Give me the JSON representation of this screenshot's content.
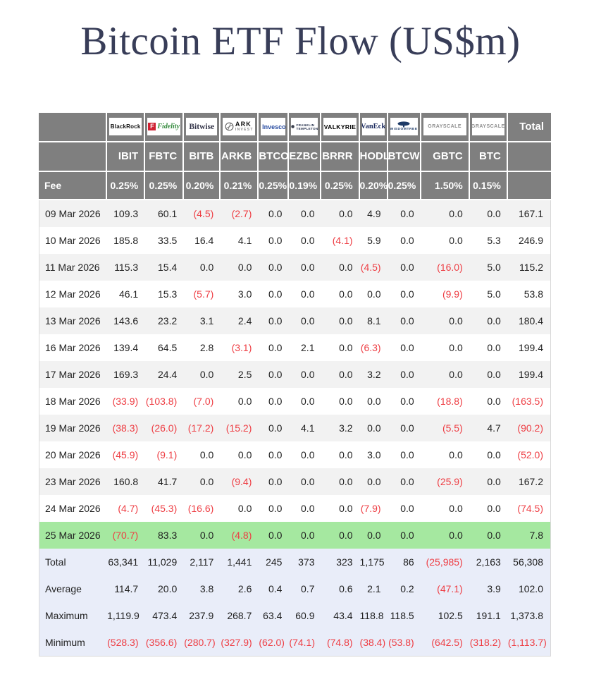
{
  "title": "Bitcoin ETF Flow (US$m)",
  "colors": {
    "title": "#383d58",
    "header_bg": "#7f7f7f",
    "stripe_bg": "#f2f2f2",
    "highlight_bg": "#a5e8a0",
    "summary_bg": "#e9edf9",
    "negative_text": "#ee3d43"
  },
  "table": {
    "fee_label": "Fee",
    "total_label": "Total",
    "columns": [
      {
        "ticker": "IBIT",
        "provider": "BlackRock",
        "fee": "0.25%",
        "logo": {
          "type": "blackrock",
          "lines": [
            "BlackRock"
          ]
        }
      },
      {
        "ticker": "FBTC",
        "provider": "Fidelity",
        "fee": "0.25%",
        "logo": {
          "type": "fidelity",
          "lines": [
            "F",
            "Fidelity"
          ]
        }
      },
      {
        "ticker": "BITB",
        "provider": "Bitwise",
        "fee": "0.20%",
        "logo": {
          "type": "bitwise",
          "lines": [
            "Bitwise"
          ]
        }
      },
      {
        "ticker": "ARKB",
        "provider": "ARK Invest",
        "fee": "0.21%",
        "logo": {
          "type": "ark",
          "lines": [
            "ARK",
            "INVEST"
          ]
        }
      },
      {
        "ticker": "BTCO",
        "provider": "Invesco",
        "fee": "0.25%",
        "logo": {
          "type": "invesco",
          "lines": [
            "Invesco"
          ]
        }
      },
      {
        "ticker": "EZBC",
        "provider": "Franklin Templeton",
        "fee": "0.19%",
        "logo": {
          "type": "franklin",
          "lines": [
            "FRANKLIN",
            "TEMPLETON"
          ]
        }
      },
      {
        "ticker": "BRRR",
        "provider": "Valkyrie",
        "fee": "0.25%",
        "logo": {
          "type": "valkyrie",
          "lines": [
            "VALKYRIE"
          ]
        }
      },
      {
        "ticker": "HODL",
        "provider": "VanEck",
        "fee": "0.20%",
        "logo": {
          "type": "vaneck",
          "lines": [
            "VanEck"
          ]
        }
      },
      {
        "ticker": "BTCW",
        "provider": "WisdomTree",
        "fee": "0.25%",
        "logo": {
          "type": "wisdomtree",
          "lines": [
            "WISDOMTREE"
          ]
        }
      },
      {
        "ticker": "GBTC",
        "provider": "Grayscale",
        "fee": "1.50%",
        "logo": {
          "type": "grayscale",
          "lines": [
            "GRAYSCALE"
          ]
        }
      },
      {
        "ticker": "BTC",
        "provider": "Grayscale",
        "fee": "0.15%",
        "logo": {
          "type": "grayscale",
          "lines": [
            "GRAYSCALE"
          ]
        }
      }
    ],
    "rows": [
      {
        "date": "09 Mar 2026",
        "values": [
          "109.3",
          "60.1",
          "(4.5)",
          "(2.7)",
          "0.0",
          "0.0",
          "0.0",
          "4.9",
          "0.0",
          "0.0",
          "0.0"
        ],
        "total": "167.1",
        "highlight": false
      },
      {
        "date": "10 Mar 2026",
        "values": [
          "185.8",
          "33.5",
          "16.4",
          "4.1",
          "0.0",
          "0.0",
          "(4.1)",
          "5.9",
          "0.0",
          "0.0",
          "5.3"
        ],
        "total": "246.9",
        "highlight": false
      },
      {
        "date": "11 Mar 2026",
        "values": [
          "115.3",
          "15.4",
          "0.0",
          "0.0",
          "0.0",
          "0.0",
          "0.0",
          "(4.5)",
          "0.0",
          "(16.0)",
          "5.0"
        ],
        "total": "115.2",
        "highlight": false
      },
      {
        "date": "12 Mar 2026",
        "values": [
          "46.1",
          "15.3",
          "(5.7)",
          "3.0",
          "0.0",
          "0.0",
          "0.0",
          "0.0",
          "0.0",
          "(9.9)",
          "5.0"
        ],
        "total": "53.8",
        "highlight": false
      },
      {
        "date": "13 Mar 2026",
        "values": [
          "143.6",
          "23.2",
          "3.1",
          "2.4",
          "0.0",
          "0.0",
          "0.0",
          "8.1",
          "0.0",
          "0.0",
          "0.0"
        ],
        "total": "180.4",
        "highlight": false
      },
      {
        "date": "16 Mar 2026",
        "values": [
          "139.4",
          "64.5",
          "2.8",
          "(3.1)",
          "0.0",
          "2.1",
          "0.0",
          "(6.3)",
          "0.0",
          "0.0",
          "0.0"
        ],
        "total": "199.4",
        "highlight": false
      },
      {
        "date": "17 Mar 2026",
        "values": [
          "169.3",
          "24.4",
          "0.0",
          "2.5",
          "0.0",
          "0.0",
          "0.0",
          "3.2",
          "0.0",
          "0.0",
          "0.0"
        ],
        "total": "199.4",
        "highlight": false
      },
      {
        "date": "18 Mar 2026",
        "values": [
          "(33.9)",
          "(103.8)",
          "(7.0)",
          "0.0",
          "0.0",
          "0.0",
          "0.0",
          "0.0",
          "0.0",
          "(18.8)",
          "0.0"
        ],
        "total": "(163.5)",
        "highlight": false
      },
      {
        "date": "19 Mar 2026",
        "values": [
          "(38.3)",
          "(26.0)",
          "(17.2)",
          "(15.2)",
          "0.0",
          "4.1",
          "3.2",
          "0.0",
          "0.0",
          "(5.5)",
          "4.7"
        ],
        "total": "(90.2)",
        "highlight": false
      },
      {
        "date": "20 Mar 2026",
        "values": [
          "(45.9)",
          "(9.1)",
          "0.0",
          "0.0",
          "0.0",
          "0.0",
          "0.0",
          "3.0",
          "0.0",
          "0.0",
          "0.0"
        ],
        "total": "(52.0)",
        "highlight": false
      },
      {
        "date": "23 Mar 2026",
        "values": [
          "160.8",
          "41.7",
          "0.0",
          "(9.4)",
          "0.0",
          "0.0",
          "0.0",
          "0.0",
          "0.0",
          "(25.9)",
          "0.0"
        ],
        "total": "167.2",
        "highlight": false
      },
      {
        "date": "24 Mar 2026",
        "values": [
          "(4.7)",
          "(45.3)",
          "(16.6)",
          "0.0",
          "0.0",
          "0.0",
          "0.0",
          "(7.9)",
          "0.0",
          "0.0",
          "0.0"
        ],
        "total": "(74.5)",
        "highlight": false
      },
      {
        "date": "25 Mar 2026",
        "values": [
          "(70.7)",
          "83.3",
          "0.0",
          "(4.8)",
          "0.0",
          "0.0",
          "0.0",
          "0.0",
          "0.0",
          "0.0",
          "0.0"
        ],
        "total": "7.8",
        "highlight": true
      }
    ],
    "summary": [
      {
        "label": "Total",
        "values": [
          "63,341",
          "11,029",
          "2,117",
          "1,441",
          "245",
          "373",
          "323",
          "1,175",
          "86",
          "(25,985)",
          "2,163"
        ],
        "total": "56,308"
      },
      {
        "label": "Average",
        "values": [
          "114.7",
          "20.0",
          "3.8",
          "2.6",
          "0.4",
          "0.7",
          "0.6",
          "2.1",
          "0.2",
          "(47.1)",
          "3.9"
        ],
        "total": "102.0"
      },
      {
        "label": "Maximum",
        "values": [
          "1,119.9",
          "473.4",
          "237.9",
          "268.7",
          "63.4",
          "60.9",
          "43.4",
          "118.8",
          "118.5",
          "102.5",
          "191.1"
        ],
        "total": "1,373.8"
      },
      {
        "label": "Minimum",
        "values": [
          "(528.3)",
          "(356.6)",
          "(280.7)",
          "(327.9)",
          "(62.0)",
          "(74.1)",
          "(74.8)",
          "(38.4)",
          "(53.8)",
          "(642.5)",
          "(318.2)"
        ],
        "total": "(1,113.7)"
      }
    ]
  },
  "chart_data": {
    "type": "table",
    "title": "Bitcoin ETF Flow (US$m)",
    "columns": [
      "IBIT",
      "FBTC",
      "BITB",
      "ARKB",
      "BTCO",
      "EZBC",
      "BRRR",
      "HODL",
      "BTCW",
      "GBTC",
      "BTC",
      "Total"
    ],
    "providers": [
      "BlackRock",
      "Fidelity",
      "Bitwise",
      "ARK Invest",
      "Invesco",
      "Franklin Templeton",
      "Valkyrie",
      "VanEck",
      "WisdomTree",
      "Grayscale",
      "Grayscale"
    ],
    "fees_pct": [
      0.25,
      0.25,
      0.2,
      0.21,
      0.25,
      0.19,
      0.25,
      0.2,
      0.25,
      1.5,
      0.15
    ],
    "highlighted_row": "25 Mar 2026",
    "rows": [
      {
        "date": "09 Mar 2026",
        "values": [
          109.3,
          60.1,
          -4.5,
          -2.7,
          0.0,
          0.0,
          0.0,
          4.9,
          0.0,
          0.0,
          0.0
        ],
        "total": 167.1
      },
      {
        "date": "10 Mar 2026",
        "values": [
          185.8,
          33.5,
          16.4,
          4.1,
          0.0,
          0.0,
          -4.1,
          5.9,
          0.0,
          0.0,
          5.3
        ],
        "total": 246.9
      },
      {
        "date": "11 Mar 2026",
        "values": [
          115.3,
          15.4,
          0.0,
          0.0,
          0.0,
          0.0,
          0.0,
          -4.5,
          0.0,
          -16.0,
          5.0
        ],
        "total": 115.2
      },
      {
        "date": "12 Mar 2026",
        "values": [
          46.1,
          15.3,
          -5.7,
          3.0,
          0.0,
          0.0,
          0.0,
          0.0,
          0.0,
          -9.9,
          5.0
        ],
        "total": 53.8
      },
      {
        "date": "13 Mar 2026",
        "values": [
          143.6,
          23.2,
          3.1,
          2.4,
          0.0,
          0.0,
          0.0,
          8.1,
          0.0,
          0.0,
          0.0
        ],
        "total": 180.4
      },
      {
        "date": "16 Mar 2026",
        "values": [
          139.4,
          64.5,
          2.8,
          -3.1,
          0.0,
          2.1,
          0.0,
          -6.3,
          0.0,
          0.0,
          0.0
        ],
        "total": 199.4
      },
      {
        "date": "17 Mar 2026",
        "values": [
          169.3,
          24.4,
          0.0,
          2.5,
          0.0,
          0.0,
          0.0,
          3.2,
          0.0,
          0.0,
          0.0
        ],
        "total": 199.4
      },
      {
        "date": "18 Mar 2026",
        "values": [
          -33.9,
          -103.8,
          -7.0,
          0.0,
          0.0,
          0.0,
          0.0,
          0.0,
          0.0,
          -18.8,
          0.0
        ],
        "total": -163.5
      },
      {
        "date": "19 Mar 2026",
        "values": [
          -38.3,
          -26.0,
          -17.2,
          -15.2,
          0.0,
          4.1,
          3.2,
          0.0,
          0.0,
          -5.5,
          4.7
        ],
        "total": -90.2
      },
      {
        "date": "20 Mar 2026",
        "values": [
          -45.9,
          -9.1,
          0.0,
          0.0,
          0.0,
          0.0,
          0.0,
          3.0,
          0.0,
          0.0,
          0.0
        ],
        "total": -52.0
      },
      {
        "date": "23 Mar 2026",
        "values": [
          160.8,
          41.7,
          0.0,
          -9.4,
          0.0,
          0.0,
          0.0,
          0.0,
          0.0,
          -25.9,
          0.0
        ],
        "total": 167.2
      },
      {
        "date": "24 Mar 2026",
        "values": [
          -4.7,
          -45.3,
          -16.6,
          0.0,
          0.0,
          0.0,
          0.0,
          -7.9,
          0.0,
          0.0,
          0.0
        ],
        "total": -74.5
      },
      {
        "date": "25 Mar 2026",
        "values": [
          -70.7,
          83.3,
          0.0,
          -4.8,
          0.0,
          0.0,
          0.0,
          0.0,
          0.0,
          0.0,
          0.0
        ],
        "total": 7.8
      }
    ],
    "summary": {
      "total": [
        63341,
        11029,
        2117,
        1441,
        245,
        373,
        323,
        1175,
        86,
        -25985,
        2163,
        56308
      ],
      "average": [
        114.7,
        20.0,
        3.8,
        2.6,
        0.4,
        0.7,
        0.6,
        2.1,
        0.2,
        -47.1,
        3.9,
        102.0
      ],
      "maximum": [
        1119.9,
        473.4,
        237.9,
        268.7,
        63.4,
        60.9,
        43.4,
        118.8,
        118.5,
        102.5,
        191.1,
        1373.8
      ],
      "minimum": [
        -528.3,
        -356.6,
        -280.7,
        -327.9,
        -62.0,
        -74.1,
        -74.8,
        -38.4,
        -53.8,
        -642.5,
        -318.2,
        -1113.7
      ]
    }
  }
}
